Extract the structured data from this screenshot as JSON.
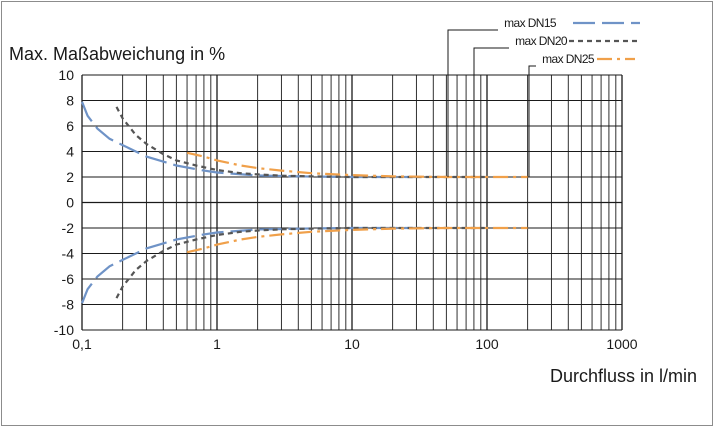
{
  "chart_data": {
    "type": "line",
    "ylabel": "Max. Maßabweichung in %",
    "xlabel": "Durchfluss in l/min",
    "x_scale": "log",
    "xlim": [
      0.1,
      1000
    ],
    "ylim": [
      -10,
      10
    ],
    "x_ticks": [
      "0,1",
      "1",
      "10",
      "100",
      "1000"
    ],
    "y_ticks": [
      "10",
      "8",
      "6",
      "4",
      "2",
      "0",
      "-2",
      "-4",
      "-6",
      "-8",
      "-10"
    ],
    "y_tick_values": [
      10,
      8,
      6,
      4,
      2,
      0,
      -2,
      -4,
      -6,
      -8,
      -10
    ],
    "grid": true,
    "legend_position": "top-right",
    "series": [
      {
        "name": "max DN15",
        "color": "#6f93c7",
        "dash": "long-dash",
        "x": [
          0.1,
          0.11,
          0.13,
          0.16,
          0.2,
          0.3,
          0.5,
          0.8,
          1,
          2,
          5,
          10,
          20,
          30
        ],
        "upper": [
          7.9,
          6.8,
          5.8,
          5.0,
          4.5,
          3.6,
          2.9,
          2.5,
          2.35,
          2.12,
          2.03,
          2.0,
          2.0,
          2.0
        ],
        "lower": [
          -7.9,
          -6.8,
          -5.8,
          -5.0,
          -4.5,
          -3.6,
          -2.9,
          -2.5,
          -2.35,
          -2.12,
          -2.03,
          -2.0,
          -2.0,
          -2.0
        ]
      },
      {
        "name": "max DN20",
        "color": "#555555",
        "dash": "short-dash",
        "x": [
          0.18,
          0.2,
          0.25,
          0.3,
          0.4,
          0.5,
          0.7,
          1,
          1.5,
          2,
          3,
          5,
          10,
          20,
          50,
          100
        ],
        "upper": [
          7.5,
          6.6,
          5.3,
          4.6,
          3.8,
          3.3,
          2.9,
          2.55,
          2.3,
          2.2,
          2.1,
          2.05,
          2.0,
          2.0,
          2.0,
          2.0
        ],
        "lower": [
          -7.5,
          -6.6,
          -5.3,
          -4.6,
          -3.8,
          -3.3,
          -2.9,
          -2.55,
          -2.3,
          -2.2,
          -2.1,
          -2.05,
          -2.0,
          -2.0,
          -2.0,
          -2.0
        ]
      },
      {
        "name": "max DN25",
        "color": "#f0a04a",
        "dash": "dash-dot",
        "x": [
          0.6,
          0.8,
          1,
          1.5,
          2,
          3,
          5,
          10,
          20,
          50,
          100,
          200
        ],
        "upper": [
          3.9,
          3.6,
          3.3,
          2.9,
          2.7,
          2.5,
          2.3,
          2.15,
          2.05,
          2.0,
          2.0,
          2.0
        ],
        "lower": [
          -3.9,
          -3.6,
          -3.3,
          -2.9,
          -2.7,
          -2.5,
          -2.3,
          -2.15,
          -2.05,
          -2.0,
          -2.0,
          -2.0
        ]
      }
    ]
  }
}
